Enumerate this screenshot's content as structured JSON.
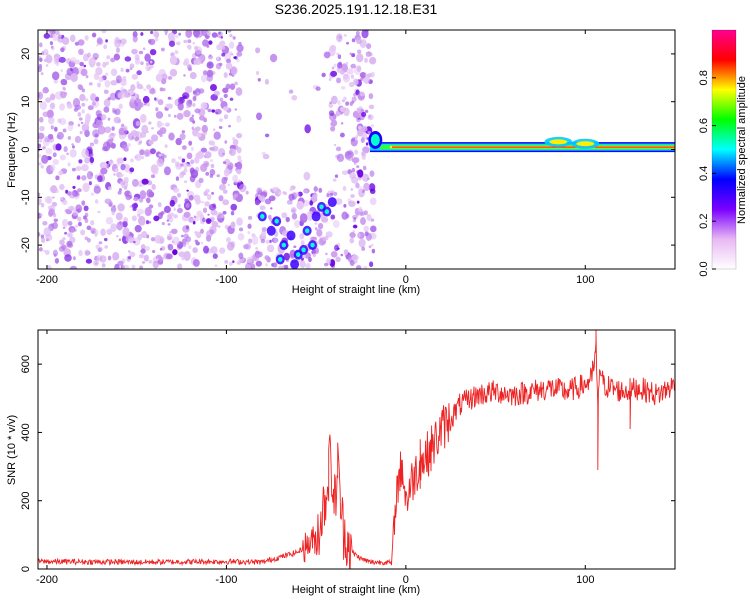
{
  "title": "S236.2025.191.12.18.E31",
  "chart_data": [
    {
      "type": "heatmap",
      "xlabel": "Height of straight line (km)",
      "ylabel": "Frequency (Hz)",
      "xlim": [
        -205,
        150
      ],
      "ylim": [
        -25,
        25
      ],
      "xticks": [
        -200,
        -100,
        0,
        100
      ],
      "yticks": [
        -20,
        -10,
        0,
        10,
        20
      ],
      "colorbar": {
        "label": "Normalized spectral amplitude",
        "range": [
          0,
          1
        ],
        "ticks": [
          "0.0",
          "0.2",
          "0.4",
          "0.6",
          "0.8"
        ],
        "tick_values": [
          0.0,
          0.2,
          0.4,
          0.6,
          0.8
        ],
        "colors": [
          "#ffffff",
          "#e8b8f4",
          "#7a00ff",
          "#0000ff",
          "#00ffff",
          "#00ff00",
          "#ffff00",
          "#ff0000",
          "#ff0090"
        ]
      },
      "features": [
        {
          "name": "diffuse noise",
          "x_range": [
            -205,
            -18
          ],
          "y_range": [
            -25,
            25
          ],
          "level": 0.1
        },
        {
          "name": "signal",
          "x_range": [
            -20,
            150
          ],
          "frequency": 0.5,
          "level": 0.95
        }
      ]
    },
    {
      "type": "line",
      "xlabel": "Height of straight line (km)",
      "ylabel": "SNR (10 * v/v)",
      "xlim": [
        -205,
        150
      ],
      "ylim": [
        0,
        700
      ],
      "xticks": [
        -200,
        -100,
        0,
        100
      ],
      "yticks": [
        0,
        200,
        400,
        600
      ],
      "color": "#ee2222",
      "x": [
        -205,
        -150,
        -100,
        -80,
        -70,
        -60,
        -50,
        -45,
        -42,
        -40,
        -38,
        -35,
        -30,
        -25,
        -20,
        -15,
        -10,
        -8,
        -5,
        -2,
        0,
        5,
        10,
        15,
        20,
        25,
        30,
        40,
        50,
        60,
        70,
        80,
        90,
        100,
        104,
        106,
        107,
        108,
        110,
        120,
        130,
        140,
        150
      ],
      "y": [
        22,
        20,
        22,
        20,
        35,
        50,
        90,
        200,
        330,
        180,
        290,
        120,
        50,
        30,
        20,
        20,
        20,
        15,
        240,
        300,
        200,
        280,
        320,
        360,
        410,
        440,
        480,
        510,
        520,
        510,
        520,
        530,
        520,
        540,
        560,
        650,
        450,
        600,
        540,
        520,
        530,
        510,
        540
      ],
      "markers": [
        {
          "x": -43,
          "y": 350
        },
        {
          "x": -38,
          "y": 370
        },
        {
          "x": -2,
          "y": 320
        },
        {
          "x": 8,
          "y": 380
        },
        {
          "x": 104,
          "y": 610
        },
        {
          "x": 106,
          "y": 700
        },
        {
          "x": 107,
          "y": 290
        },
        {
          "x": 125,
          "y": 410
        }
      ]
    }
  ]
}
